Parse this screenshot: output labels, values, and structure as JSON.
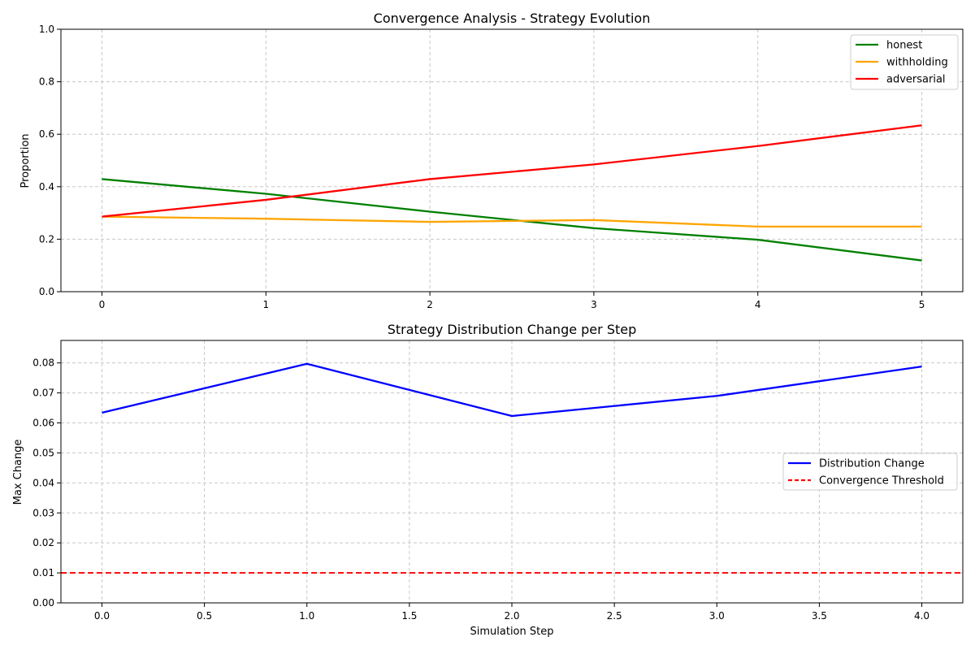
{
  "chart_data": [
    {
      "type": "line",
      "title": "Convergence Analysis - Strategy Evolution",
      "xlabel": "",
      "ylabel": "Proportion",
      "xlim": [
        -0.25,
        5.25
      ],
      "ylim": [
        0,
        1
      ],
      "x": [
        0,
        1,
        2,
        3,
        4,
        5
      ],
      "xticks": [
        0,
        1,
        2,
        3,
        4,
        5
      ],
      "xtick_labels": [
        "0",
        "1",
        "2",
        "3",
        "4",
        "5"
      ],
      "yticks": [
        0,
        0.2,
        0.4,
        0.6,
        0.8,
        1.0
      ],
      "ytick_labels": [
        "0.0",
        "0.2",
        "0.4",
        "0.6",
        "0.8",
        "1.0"
      ],
      "grid": true,
      "legend_position": "top-right",
      "series": [
        {
          "name": "honest",
          "color": "#008000",
          "dash": "solid",
          "values": [
            0.429,
            0.373,
            0.305,
            0.242,
            0.198,
            0.119
          ]
        },
        {
          "name": "withholding",
          "color": "#FFA500",
          "dash": "solid",
          "values": [
            0.286,
            0.278,
            0.266,
            0.273,
            0.248,
            0.248
          ]
        },
        {
          "name": "adversarial",
          "color": "#FF0000",
          "dash": "solid",
          "values": [
            0.286,
            0.35,
            0.429,
            0.485,
            0.555,
            0.634
          ]
        }
      ]
    },
    {
      "type": "line",
      "title": "Strategy Distribution Change per Step",
      "xlabel": "Simulation Step",
      "ylabel": "Max Change",
      "xlim": [
        -0.2,
        4.2
      ],
      "ylim": [
        0,
        0.0875
      ],
      "x": [
        0,
        1,
        2,
        3,
        4
      ],
      "xticks": [
        0,
        0.5,
        1,
        1.5,
        2,
        2.5,
        3,
        3.5,
        4
      ],
      "xtick_labels": [
        "0.0",
        "0.5",
        "1.0",
        "1.5",
        "2.0",
        "2.5",
        "3.0",
        "3.5",
        "4.0"
      ],
      "yticks": [
        0,
        0.01,
        0.02,
        0.03,
        0.04,
        0.05,
        0.06,
        0.07,
        0.08
      ],
      "ytick_labels": [
        "0.00",
        "0.01",
        "0.02",
        "0.03",
        "0.04",
        "0.05",
        "0.06",
        "0.07",
        "0.08"
      ],
      "grid": true,
      "legend_position": "center-right",
      "series": [
        {
          "name": "Distribution Change",
          "color": "#0000FF",
          "dash": "solid",
          "values": [
            0.0634,
            0.0797,
            0.0623,
            0.069,
            0.0788
          ]
        }
      ],
      "hlines": [
        {
          "name": "Convergence Threshold",
          "color": "#FF0000",
          "dash": "dashed",
          "value": 0.01
        }
      ]
    }
  ]
}
